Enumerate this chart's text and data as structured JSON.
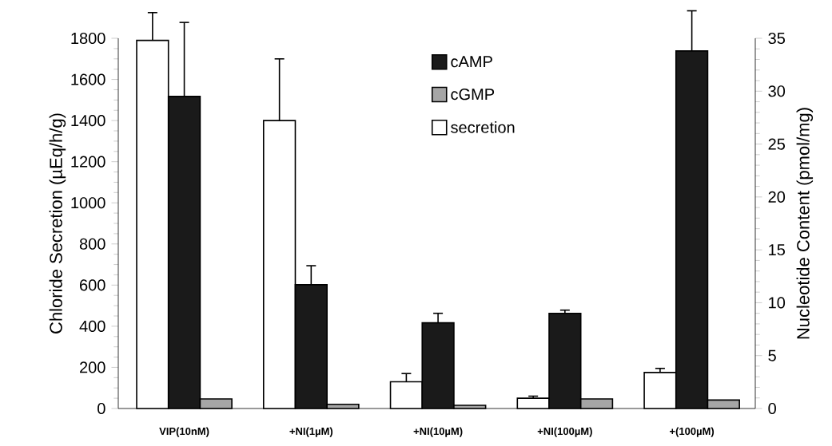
{
  "chart_data": {
    "type": "bar",
    "categories": [
      "VIP(10nM)",
      "+NI(1µM)",
      "+NI(10µM)",
      "+NI(100µM)",
      "+(100µM)"
    ],
    "ylabel": "Chloride Secretion (µEq/h/g)",
    "y2label": "Nucleotide Content (pmol/mg)",
    "ylim": [
      0,
      1800
    ],
    "yticks": [
      0,
      200,
      400,
      600,
      800,
      1000,
      1200,
      1400,
      1600,
      1800
    ],
    "y2lim": [
      0,
      35
    ],
    "y2ticks": [
      0,
      5,
      10,
      15,
      20,
      25,
      30,
      35
    ],
    "legend": "top",
    "series": [
      {
        "name": "secretion",
        "color": "#ffffff",
        "values": [
          1790,
          1400,
          130,
          50,
          175
        ],
        "errors": [
          135,
          300,
          40,
          10,
          20
        ]
      },
      {
        "name": "cAMP",
        "color": "#1a1a1a",
        "axis": "y2",
        "values": [
          29.5,
          11.7,
          8.1,
          9.0,
          33.8
        ],
        "errors": [
          7.0,
          1.8,
          0.9,
          0.3,
          3.8
        ]
      },
      {
        "name": "cGMP",
        "color": "#a6a6a6",
        "axis": "y2",
        "values": [
          0.9,
          0.4,
          0.3,
          0.9,
          0.8
        ]
      }
    ]
  }
}
